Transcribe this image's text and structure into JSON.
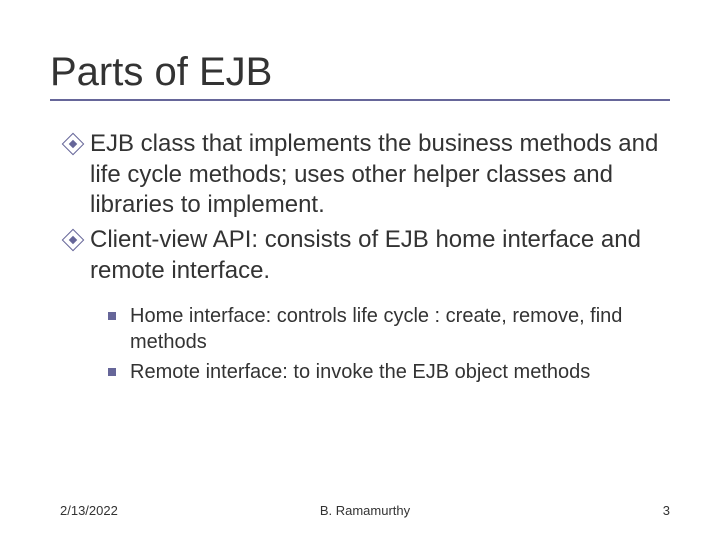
{
  "title": "Parts of EJB",
  "bullets": [
    "EJB class that implements the business methods and life cycle methods; uses other helper classes and libraries to implement.",
    "Client-view API: consists of EJB home interface and remote interface."
  ],
  "subBullets": [
    "Home interface: controls life cycle : create, remove, find methods",
    "Remote interface: to invoke the EJB object methods"
  ],
  "footer": {
    "date": "2/13/2022",
    "author": "B. Ramamurthy",
    "pageNumber": "3"
  },
  "colors": {
    "accent": "#666699",
    "text": "#333333",
    "background": "#ffffff"
  },
  "typography": {
    "title_fontsize": 40,
    "body_fontsize": 24,
    "sub_fontsize": 20,
    "footer_fontsize": 13
  }
}
